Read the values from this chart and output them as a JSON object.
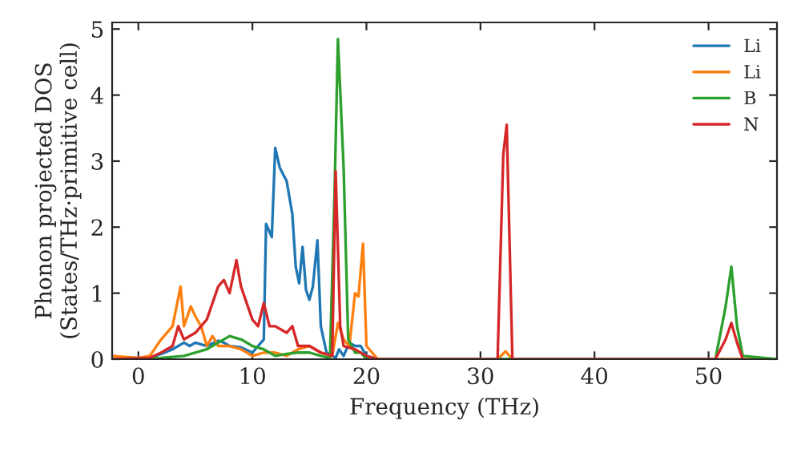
{
  "chart_data": {
    "type": "line",
    "xlabel": "Frequency (THz)",
    "ylabel": "Phonon projected DOS\n(States/THz·primitive cell)",
    "xlim": [
      -2.3,
      56
    ],
    "ylim": [
      0,
      5.1
    ],
    "xticks": [
      0,
      10,
      20,
      30,
      40,
      50
    ],
    "yticks": [
      0,
      1,
      2,
      3,
      4,
      5
    ],
    "grid": false,
    "legend": "top right",
    "series": [
      {
        "name": "Li",
        "color": "#1f77b4",
        "x": [
          -2.3,
          1,
          2,
          3,
          3.5,
          4,
          4.5,
          5,
          6,
          7,
          7.5,
          8,
          9,
          10,
          11,
          11.2,
          11.7,
          12,
          12.4,
          13,
          13.5,
          13.8,
          14.1,
          14.4,
          14.7,
          15,
          15.3,
          15.7,
          16,
          16.5,
          17,
          17.3,
          17.6,
          18,
          18.5,
          19,
          19.5,
          20,
          21,
          56
        ],
        "values": [
          0,
          0.02,
          0.08,
          0.15,
          0.2,
          0.25,
          0.2,
          0.25,
          0.2,
          0.28,
          0.25,
          0.2,
          0.18,
          0.1,
          0.3,
          2.05,
          1.85,
          3.2,
          2.9,
          2.7,
          2.2,
          1.4,
          1.15,
          1.7,
          1.05,
          0.9,
          1.1,
          1.8,
          0.5,
          0.1,
          0.05,
          0.02,
          0.15,
          0.05,
          0.25,
          0.2,
          0.2,
          0.05,
          0,
          0
        ]
      },
      {
        "name": "Li",
        "color": "#ff7f0e",
        "x": [
          -2.3,
          0,
          1,
          2,
          3,
          3.7,
          4,
          4.6,
          5,
          5.5,
          6,
          6.5,
          7,
          8,
          9,
          10,
          11,
          12,
          13,
          14,
          15,
          16,
          17,
          17.5,
          18,
          18.5,
          19,
          19.3,
          19.7,
          20,
          21,
          31.5,
          32.2,
          32.8,
          56
        ],
        "values": [
          0.05,
          0.02,
          0.05,
          0.3,
          0.5,
          1.1,
          0.5,
          0.8,
          0.65,
          0.5,
          0.2,
          0.35,
          0.2,
          0.2,
          0.15,
          0.05,
          0.1,
          0.1,
          0.05,
          0.15,
          0.2,
          0.1,
          0.05,
          0.55,
          0.3,
          0.2,
          1.0,
          0.95,
          1.75,
          0.2,
          0,
          0,
          0.12,
          0,
          0
        ]
      },
      {
        "name": "B",
        "color": "#2ca02c",
        "x": [
          -2.3,
          2,
          4,
          6,
          7,
          8,
          9,
          10,
          11,
          12,
          13,
          14,
          15,
          16,
          16.8,
          17.2,
          17.5,
          18,
          18.4,
          19,
          19.5,
          20,
          50.6,
          51.5,
          52,
          52.5,
          53,
          56
        ],
        "values": [
          0,
          0.02,
          0.05,
          0.15,
          0.25,
          0.35,
          0.3,
          0.2,
          0.15,
          0.05,
          0.08,
          0.1,
          0.1,
          0.05,
          0.02,
          2.5,
          4.85,
          2.9,
          0.3,
          0.1,
          0.1,
          0,
          0,
          0.8,
          1.4,
          0.5,
          0.05,
          0
        ]
      },
      {
        "name": "N",
        "color": "#d62728",
        "x": [
          -2.3,
          1,
          2,
          3,
          3.5,
          4,
          5,
          6,
          7,
          7.5,
          8,
          8.6,
          9,
          10,
          10.5,
          11,
          11.5,
          12,
          13,
          13.5,
          14,
          15,
          16,
          17,
          17.3,
          17.7,
          18,
          19,
          20,
          21,
          31.5,
          32,
          32.3,
          32.8,
          50.6,
          51.5,
          52,
          52.5,
          53
        ],
        "values": [
          0,
          0.02,
          0.1,
          0.2,
          0.5,
          0.3,
          0.4,
          0.6,
          1.1,
          1.2,
          1.0,
          1.5,
          1.1,
          0.6,
          0.5,
          0.85,
          0.5,
          0.5,
          0.4,
          0.5,
          0.2,
          0.2,
          0.1,
          0.05,
          2.85,
          0.5,
          0.2,
          0.15,
          0.05,
          0,
          0,
          3.1,
          3.55,
          0,
          0,
          0.3,
          0.55,
          0.25,
          0
        ]
      }
    ]
  }
}
